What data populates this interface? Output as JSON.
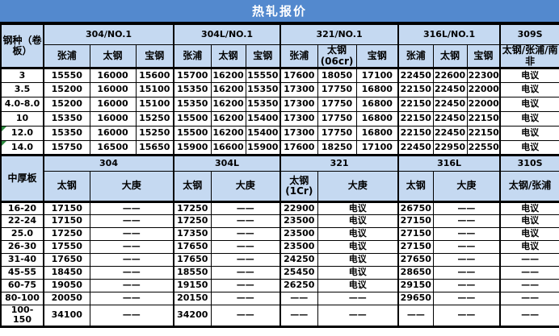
{
  "title": "热轧报价",
  "colors": {
    "title_bg": "#5389ce",
    "title_fg": "#ffffff",
    "header_bg": "#c5d9f1",
    "grid_line": "#000000",
    "flag_green": "#2e8b40"
  },
  "coil": {
    "corner_label": "钢种（卷板）",
    "groups": [
      {
        "label": "304/NO.1",
        "mills": [
          "张浦",
          "太钢",
          "宝钢"
        ]
      },
      {
        "label": "304L/NO.1",
        "mills": [
          "张浦",
          "太钢",
          "宝钢"
        ]
      },
      {
        "label": "321/NO.1",
        "mills": [
          "张浦",
          "太钢(06cr)",
          "宝钢"
        ]
      },
      {
        "label": "316L/NO.1",
        "mills": [
          "张浦",
          "太钢",
          "宝钢"
        ]
      },
      {
        "label": "309S",
        "mills": [
          "太钢/张浦/南非"
        ]
      }
    ],
    "rows": [
      {
        "spec": "3",
        "flag": false,
        "values": [
          "15550",
          "16000",
          "15600",
          "15700",
          "16200",
          "15550",
          "17600",
          "18050",
          "17100",
          "22450",
          "22600",
          "22300",
          "电议"
        ]
      },
      {
        "spec": "3.5",
        "flag": false,
        "values": [
          "15200",
          "16000",
          "15100",
          "15350",
          "16200",
          "15350",
          "17300",
          "17750",
          "16800",
          "22150",
          "22450",
          "22000",
          "电议"
        ]
      },
      {
        "spec": "4.0-8.0",
        "flag": false,
        "values": [
          "15200",
          "16000",
          "15100",
          "15350",
          "16200",
          "15350",
          "17300",
          "17750",
          "16800",
          "22150",
          "22450",
          "22000",
          "电议"
        ]
      },
      {
        "spec": "10",
        "flag": false,
        "values": [
          "15350",
          "16000",
          "15250",
          "15500",
          "16200",
          "15400",
          "17300",
          "17750",
          "16800",
          "22150",
          "22450",
          "22150",
          "电议"
        ]
      },
      {
        "spec": "12.0",
        "flag": true,
        "values": [
          "15350",
          "16000",
          "15250",
          "15500",
          "16200",
          "15400",
          "17300",
          "17750",
          "16800",
          "22150",
          "22450",
          "22150",
          "电议"
        ]
      },
      {
        "spec": "14.0",
        "flag": true,
        "values": [
          "15750",
          "16500",
          "15650",
          "15900",
          "16600",
          "15900",
          "17600",
          "18250",
          "17100",
          "22450",
          "22950",
          "22550",
          "电议"
        ]
      }
    ]
  },
  "plate": {
    "corner_label": "中厚板",
    "groups": [
      {
        "label": "304",
        "mills": [
          "太钢",
          "大庚"
        ]
      },
      {
        "label": "304L",
        "mills": [
          "太钢",
          "大庚"
        ]
      },
      {
        "label": "321",
        "mills": [
          "太钢(1Cr)",
          "大庚"
        ]
      },
      {
        "label": "316L",
        "mills": [
          "太钢",
          "大庚"
        ]
      },
      {
        "label": "310S",
        "mills": [
          "太钢/张浦"
        ]
      }
    ],
    "rows": [
      {
        "spec": "16-20",
        "values": [
          "17150",
          "——",
          "17250",
          "——",
          "22900",
          "电议",
          "26750",
          "——",
          "电议"
        ]
      },
      {
        "spec": "22-24",
        "values": [
          "17150",
          "——",
          "17250",
          "——",
          "23500",
          "电议",
          "27150",
          "——",
          "电议"
        ]
      },
      {
        "spec": "25.0",
        "values": [
          "17250",
          "——",
          "17350",
          "——",
          "23500",
          "电议",
          "27150",
          "——",
          "电议"
        ]
      },
      {
        "spec": "26-30",
        "values": [
          "17550",
          "——",
          "17650",
          "——",
          "23500",
          "电议",
          "27150",
          "——",
          "电议"
        ]
      },
      {
        "spec": "31-40",
        "values": [
          "17650",
          "——",
          "17650",
          "——",
          "24250",
          "电议",
          "27650",
          "——",
          "——"
        ]
      },
      {
        "spec": "45-55",
        "values": [
          "18450",
          "——",
          "18550",
          "——",
          "25450",
          "电议",
          "28650",
          "——",
          "——"
        ]
      },
      {
        "spec": "60-75",
        "values": [
          "19050",
          "——",
          "19150",
          "——",
          "26250",
          "电议",
          "29150",
          "——",
          "——"
        ]
      },
      {
        "spec": "80-100",
        "values": [
          "20050",
          "——",
          "20150",
          "——",
          "——",
          "——",
          "29650",
          "——",
          "——"
        ]
      },
      {
        "spec": "100-150",
        "values": [
          "34100",
          "——",
          "34200",
          "——",
          "——",
          "——",
          "——",
          "——",
          "——"
        ]
      }
    ]
  }
}
